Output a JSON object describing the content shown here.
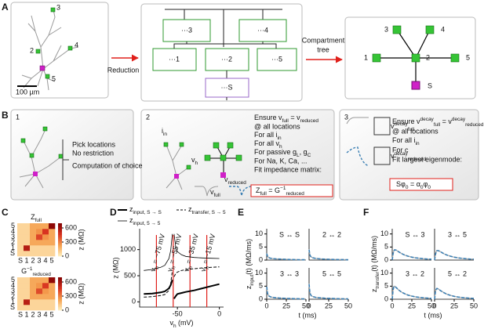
{
  "panel_labels": [
    "A",
    "B",
    "C",
    "D",
    "E",
    "F"
  ],
  "panel_a": {
    "neuron_labels": [
      "3",
      "2",
      "4",
      "5"
    ],
    "scale_bar": "100 µm",
    "arrow_reduction": "Reduction",
    "arrow_tree": [
      "Compartment",
      "tree"
    ],
    "circuit_labels": [
      "···3",
      "···4",
      "···1",
      "···2",
      "···5",
      "···S"
    ],
    "tree_nodes": [
      "1",
      "2",
      "3",
      "4",
      "5",
      "S"
    ]
  },
  "panel_b": {
    "step1": {
      "number": "1",
      "heading": "Pick locations",
      "lines": [
        "No restriction",
        "Computation of choice"
      ]
    },
    "step2": {
      "number": "2",
      "lines": [
        [
          {
            "t": "Ensure v"
          },
          {
            "t": "full",
            "s": "sub"
          },
          {
            "t": " = v"
          },
          {
            "t": "reduced",
            "s": "sub"
          }
        ],
        "@ all locations",
        [
          {
            "t": "For all i"
          },
          {
            "t": "in",
            "s": "sub"
          }
        ],
        [
          {
            "t": "For all v"
          },
          {
            "t": "h",
            "s": "sub"
          }
        ],
        [
          {
            "t": "For passive g"
          },
          {
            "t": "L",
            "s": "sub"
          },
          {
            "t": ", g"
          },
          {
            "t": "C",
            "s": "sub"
          }
        ],
        "For Na, K, Ca, ...",
        "Fit impedance matrix:"
      ],
      "equation": [
        {
          "t": "Z"
        },
        {
          "t": "full",
          "s": "sub"
        },
        {
          "t": " = G"
        },
        {
          "t": "−1",
          "s": "sup"
        },
        {
          "t": "reduced",
          "s": "sub"
        }
      ],
      "i_in": [
        {
          "t": "i"
        },
        {
          "t": "in",
          "s": "sub"
        }
      ],
      "v_h": [
        {
          "t": "v"
        },
        {
          "t": "h",
          "s": "sub"
        }
      ],
      "v_full": [
        {
          "t": "v"
        },
        {
          "t": "full",
          "s": "sub"
        }
      ],
      "v_reduced": [
        {
          "t": "v"
        },
        {
          "t": "reduced",
          "s": "sub"
        }
      ]
    },
    "step3": {
      "number": "3",
      "lines": [
        [
          {
            "t": "Ensure v"
          },
          {
            "t": "decay",
            "s": "sup"
          },
          {
            "t": "full",
            "s": "sub"
          },
          {
            "t": " = v"
          },
          {
            "t": "decay",
            "s": "sup"
          },
          {
            "t": "reduced",
            "s": "sub"
          }
        ],
        "@ all locations",
        [
          {
            "t": "For all i"
          },
          {
            "t": "in",
            "s": "sub"
          }
        ],
        "For c",
        "Fit largest eigenmode:"
      ],
      "equation": [
        {
          "t": "Sφ"
        },
        {
          "t": "0",
          "s": "sub"
        },
        {
          "t": " = α"
        },
        {
          "t": "0",
          "s": "sub"
        },
        {
          "t": "φ"
        },
        {
          "t": "0",
          "s": "sub"
        }
      ],
      "v_full": [
        {
          "t": "v"
        },
        {
          "t": "decay",
          "s": "sup"
        },
        {
          "t": "full",
          "s": "sub"
        }
      ],
      "v_reduced": [
        {
          "t": "v"
        },
        {
          "t": "decay",
          "s": "sup"
        },
        {
          "t": "reduced",
          "s": "sub"
        }
      ]
    }
  },
  "chart_data": [
    {
      "type": "heatmap",
      "title": [
        {
          "t": "Z"
        },
        {
          "t": "full",
          "s": "sub"
        }
      ],
      "categories": [
        "S",
        "1",
        "2",
        "3",
        "4",
        "5"
      ],
      "values": [
        [
          80,
          80,
          80,
          80,
          80,
          80
        ],
        [
          80,
          560,
          80,
          80,
          80,
          80
        ],
        [
          80,
          80,
          210,
          210,
          210,
          210
        ],
        [
          80,
          80,
          210,
          420,
          260,
          210
        ],
        [
          80,
          80,
          210,
          260,
          460,
          210
        ],
        [
          80,
          80,
          210,
          210,
          210,
          660
        ]
      ],
      "zlim": [
        0,
        700
      ],
      "zticks": [
        0,
        300,
        600
      ],
      "zlabel": "z (MΩ)",
      "colormap": [
        "#fff1c1",
        "#f5a04e",
        "#d7301f",
        "#7f0000"
      ]
    },
    {
      "type": "heatmap",
      "title": [
        {
          "t": "G"
        },
        {
          "t": "−1",
          "s": "sup"
        },
        {
          "t": "reduced",
          "s": "sub"
        }
      ],
      "categories": [
        "S",
        "1",
        "2",
        "3",
        "4",
        "5"
      ],
      "values": [
        [
          80,
          80,
          80,
          80,
          80,
          80
        ],
        [
          80,
          550,
          80,
          80,
          80,
          80
        ],
        [
          80,
          80,
          210,
          210,
          210,
          210
        ],
        [
          80,
          80,
          210,
          410,
          250,
          210
        ],
        [
          80,
          80,
          210,
          250,
          450,
          210
        ],
        [
          80,
          80,
          210,
          210,
          210,
          650
        ]
      ],
      "zlim": [
        0,
        700
      ],
      "zticks": [
        0,
        300,
        600
      ],
      "zlabel": "z (MΩ)",
      "colormap": [
        "#fff1c1",
        "#f5a04e",
        "#d7301f",
        "#7f0000"
      ]
    },
    {
      "type": "line",
      "x": [
        -90,
        -80,
        -70,
        -65,
        -60,
        -58,
        -56,
        -55,
        -54,
        -52,
        -50,
        -45,
        -40,
        -30,
        -20,
        -10,
        0
      ],
      "series": [
        {
          "name": [
            {
              "t": "z"
            },
            {
              "t": "input, S → S",
              "s": "sub"
            }
          ],
          "color": "#000000",
          "width": 2,
          "dash": false,
          "values": [
            150,
            160,
            180,
            200,
            260,
            320,
            420,
            null,
            60,
            110,
            150,
            170,
            190,
            220,
            260,
            300,
            340
          ]
        },
        {
          "name": [
            {
              "t": "z"
            },
            {
              "t": "transfer, S → 5",
              "s": "sub"
            }
          ],
          "color": "#000000",
          "width": 1,
          "dash": true,
          "values": [
            90,
            100,
            120,
            140,
            220,
            350,
            600,
            null,
            480,
            540,
            570,
            600,
            615,
            635,
            650,
            660,
            670
          ]
        },
        {
          "name": [
            {
              "t": "z"
            },
            {
              "t": "input, 5 → 5",
              "s": "sub"
            }
          ],
          "color": "#000000",
          "width": 0.8,
          "dash": false,
          "values": [
            600,
            620,
            660,
            700,
            830,
            980,
            1300,
            null,
            1300,
            1050,
            960,
            900,
            870,
            850,
            840,
            835,
            830
          ]
        }
      ],
      "xlim": [
        -95,
        5
      ],
      "xticks": [
        -50,
        0
      ],
      "ylim": [
        -100,
        1400
      ],
      "yticks": [
        0,
        500,
        1000
      ],
      "xlabel": [
        {
          "t": "v"
        },
        {
          "t": "h",
          "s": "sub"
        },
        {
          "t": " (mV)"
        }
      ],
      "ylabel": "z (MΩ)",
      "annotations": [
        {
          "x": -75,
          "text": [
            {
              "t": "v"
            },
            {
              "t": "h",
              "s": "sub"
            },
            {
              "t": " = −75 mV"
            }
          ]
        },
        {
          "x": -55,
          "text": [
            {
              "t": "v"
            },
            {
              "t": "h",
              "s": "sub"
            },
            {
              "t": " = −55 mV"
            }
          ]
        },
        {
          "x": -35,
          "text": [
            {
              "t": "v"
            },
            {
              "t": "h",
              "s": "sub"
            },
            {
              "t": " = −35 mV"
            }
          ]
        },
        {
          "x": -15,
          "text": [
            {
              "t": "v"
            },
            {
              "t": "h",
              "s": "sub"
            },
            {
              "t": " = −15 mV"
            }
          ]
        }
      ],
      "annotation_color": "#e0201b"
    },
    {
      "type": "small_multiples",
      "x": [
        0,
        1,
        2,
        3,
        5,
        8,
        12,
        16,
        20,
        25,
        30,
        35,
        40,
        45,
        50
      ],
      "xlim": [
        0,
        50
      ],
      "xticks": [
        0,
        25,
        50
      ],
      "ylim": [
        0,
        12
      ],
      "yticks": [
        0,
        5,
        10
      ],
      "xlabel": "t (ms)",
      "ylabel": [
        {
          "t": "z"
        },
        {
          "t": "input",
          "s": "sub"
        },
        {
          "t": "(t) (MΩ/ms)"
        }
      ],
      "panels": [
        {
          "title": "S ↔ S",
          "series": [
            {
              "color": "#aaaaaa",
              "dash": false,
              "values": [
                2.6,
                1.5,
                1.1,
                0.9,
                0.7,
                0.55,
                0.45,
                0.38,
                0.32,
                0.27,
                0.22,
                0.18,
                0.15,
                0.13,
                0.11
              ]
            },
            {
              "color": "#3b7fb3",
              "dash": true,
              "values": [
                2.5,
                1.5,
                1.1,
                0.9,
                0.7,
                0.55,
                0.45,
                0.38,
                0.32,
                0.27,
                0.22,
                0.18,
                0.15,
                0.13,
                0.11
              ]
            }
          ]
        },
        {
          "title": "2 ↔ 2",
          "series": [
            {
              "color": "#aaaaaa",
              "dash": false,
              "values": [
                4.2,
                2.0,
                1.4,
                1.1,
                0.85,
                0.65,
                0.5,
                0.42,
                0.36,
                0.3,
                0.25,
                0.2,
                0.17,
                0.14,
                0.12
              ]
            },
            {
              "color": "#3b7fb3",
              "dash": true,
              "values": [
                4.0,
                2.0,
                1.4,
                1.1,
                0.85,
                0.65,
                0.5,
                0.42,
                0.36,
                0.3,
                0.25,
                0.2,
                0.17,
                0.14,
                0.12
              ]
            }
          ]
        },
        {
          "title": "3 ↔ 3",
          "series": [
            {
              "color": "#aaaaaa",
              "dash": false,
              "values": [
                5.0,
                2.3,
                1.6,
                1.2,
                0.9,
                0.7,
                0.55,
                0.45,
                0.38,
                0.31,
                0.26,
                0.21,
                0.18,
                0.15,
                0.12
              ]
            },
            {
              "color": "#3b7fb3",
              "dash": true,
              "values": [
                4.8,
                2.3,
                1.6,
                1.2,
                0.9,
                0.7,
                0.55,
                0.45,
                0.38,
                0.31,
                0.26,
                0.21,
                0.18,
                0.15,
                0.12
              ]
            }
          ]
        },
        {
          "title": "5 ↔ 5",
          "series": [
            {
              "color": "#aaaaaa",
              "dash": false,
              "values": [
                6.0,
                2.6,
                1.7,
                1.3,
                1.0,
                0.75,
                0.58,
                0.47,
                0.4,
                0.33,
                0.27,
                0.22,
                0.18,
                0.15,
                0.12
              ]
            },
            {
              "color": "#3b7fb3",
              "dash": true,
              "values": [
                5.8,
                2.6,
                1.7,
                1.3,
                1.0,
                0.75,
                0.58,
                0.47,
                0.4,
                0.33,
                0.27,
                0.22,
                0.18,
                0.15,
                0.12
              ]
            }
          ]
        }
      ]
    },
    {
      "type": "small_multiples",
      "x": [
        0,
        1,
        2,
        3,
        5,
        8,
        12,
        16,
        20,
        25,
        30,
        35,
        40,
        45,
        50
      ],
      "xlim": [
        0,
        50
      ],
      "xticks": [
        0,
        25,
        50
      ],
      "ylim": [
        0,
        12
      ],
      "yticks": [
        0,
        5,
        10
      ],
      "xlabel": "t (ms)",
      "ylabel": [
        {
          "t": "z"
        },
        {
          "t": "transfer",
          "s": "sub"
        },
        {
          "t": "(t) (MΩ/ms)"
        }
      ],
      "panels": [
        {
          "title": "S ↔ 3",
          "series": [
            {
              "color": "#aaaaaa",
              "dash": false,
              "values": [
                0,
                2.4,
                3.6,
                4.0,
                3.8,
                3.2,
                2.5,
                1.9,
                1.5,
                1.1,
                0.85,
                0.65,
                0.5,
                0.4,
                0.32
              ]
            },
            {
              "color": "#3b7fb3",
              "dash": true,
              "values": [
                0,
                2.3,
                3.5,
                3.9,
                3.8,
                3.2,
                2.5,
                1.9,
                1.5,
                1.1,
                0.85,
                0.65,
                0.5,
                0.4,
                0.32
              ]
            }
          ]
        },
        {
          "title": "3 ↔ 5",
          "series": [
            {
              "color": "#aaaaaa",
              "dash": false,
              "values": [
                0,
                2.0,
                3.2,
                3.7,
                3.6,
                3.1,
                2.4,
                1.9,
                1.5,
                1.1,
                0.85,
                0.65,
                0.5,
                0.4,
                0.32
              ]
            },
            {
              "color": "#3b7fb3",
              "dash": true,
              "values": [
                0,
                2.0,
                3.1,
                3.6,
                3.6,
                3.1,
                2.4,
                1.9,
                1.5,
                1.1,
                0.85,
                0.65,
                0.5,
                0.4,
                0.32
              ]
            }
          ]
        },
        {
          "title": "3 ↔ 2",
          "series": [
            {
              "color": "#aaaaaa",
              "dash": false,
              "values": [
                0,
                3.5,
                4.8,
                5.0,
                4.5,
                3.6,
                2.7,
                2.1,
                1.6,
                1.2,
                0.9,
                0.7,
                0.55,
                0.43,
                0.34
              ]
            },
            {
              "color": "#3b7fb3",
              "dash": true,
              "values": [
                0,
                3.4,
                4.7,
                4.9,
                4.5,
                3.6,
                2.7,
                2.1,
                1.6,
                1.2,
                0.9,
                0.7,
                0.55,
                0.43,
                0.34
              ]
            }
          ]
        },
        {
          "title": "5 ↔ 2",
          "series": [
            {
              "color": "#aaaaaa",
              "dash": false,
              "values": [
                0,
                2.8,
                3.9,
                4.2,
                3.9,
                3.2,
                2.5,
                1.9,
                1.5,
                1.1,
                0.85,
                0.65,
                0.5,
                0.4,
                0.32
              ]
            },
            {
              "color": "#3b7fb3",
              "dash": true,
              "values": [
                0,
                2.7,
                3.8,
                4.1,
                3.9,
                3.2,
                2.5,
                1.9,
                1.5,
                1.1,
                0.85,
                0.65,
                0.5,
                0.4,
                0.32
              ]
            }
          ]
        }
      ]
    }
  ]
}
